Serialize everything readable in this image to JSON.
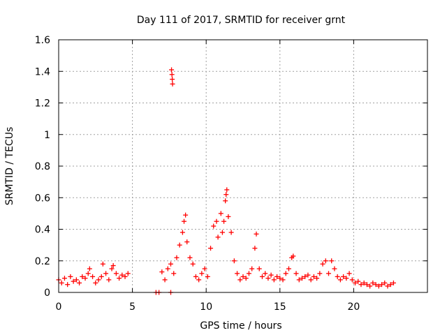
{
  "chart_data": {
    "type": "scatter",
    "title": "Day 111 of 2017, SRMTID for receiver grnt",
    "xlabel": "GPS time / hours",
    "ylabel": "SRMTID / TECUs",
    "xlim": [
      0,
      25
    ],
    "ylim": [
      0,
      1.6
    ],
    "xticks": [
      0,
      5,
      10,
      15,
      20
    ],
    "xtick_labels": [
      "0",
      "5",
      "10",
      "15",
      "20"
    ],
    "yticks": [
      0,
      0.2,
      0.4,
      0.6,
      0.8,
      1.0,
      1.2,
      1.4,
      1.6
    ],
    "ytick_labels": [
      "0",
      "0.2",
      "0.4",
      "0.6",
      "0.8",
      "1",
      "1.2",
      "1.4",
      "1.6"
    ],
    "grid": true,
    "marker": "+",
    "series_color": "#ff0000",
    "series": [
      {
        "name": "SRMTID",
        "points": [
          [
            0.0,
            0.08
          ],
          [
            0.2,
            0.06
          ],
          [
            0.4,
            0.09
          ],
          [
            0.6,
            0.05
          ],
          [
            0.8,
            0.1
          ],
          [
            1.0,
            0.07
          ],
          [
            1.2,
            0.08
          ],
          [
            1.4,
            0.06
          ],
          [
            1.6,
            0.1
          ],
          [
            1.8,
            0.09
          ],
          [
            2.0,
            0.12
          ],
          [
            2.1,
            0.15
          ],
          [
            2.3,
            0.1
          ],
          [
            2.5,
            0.06
          ],
          [
            2.7,
            0.08
          ],
          [
            2.9,
            0.1
          ],
          [
            3.0,
            0.18
          ],
          [
            3.2,
            0.12
          ],
          [
            3.4,
            0.08
          ],
          [
            3.6,
            0.15
          ],
          [
            3.7,
            0.17
          ],
          [
            3.9,
            0.12
          ],
          [
            4.1,
            0.09
          ],
          [
            4.3,
            0.11
          ],
          [
            4.5,
            0.1
          ],
          [
            4.7,
            0.12
          ],
          [
            6.6,
            0.0
          ],
          [
            6.8,
            0.0
          ],
          [
            7.0,
            0.13
          ],
          [
            7.2,
            0.08
          ],
          [
            7.4,
            0.15
          ],
          [
            7.6,
            0.18
          ],
          [
            7.6,
            0.0
          ],
          [
            7.65,
            1.41
          ],
          [
            7.68,
            1.38
          ],
          [
            7.7,
            1.35
          ],
          [
            7.72,
            1.32
          ],
          [
            7.8,
            0.12
          ],
          [
            8.0,
            0.22
          ],
          [
            8.2,
            0.3
          ],
          [
            8.4,
            0.38
          ],
          [
            8.5,
            0.45
          ],
          [
            8.6,
            0.49
          ],
          [
            8.7,
            0.32
          ],
          [
            8.9,
            0.22
          ],
          [
            9.1,
            0.18
          ],
          [
            9.3,
            0.1
          ],
          [
            9.5,
            0.08
          ],
          [
            9.7,
            0.12
          ],
          [
            9.9,
            0.15
          ],
          [
            10.1,
            0.1
          ],
          [
            10.3,
            0.28
          ],
          [
            10.5,
            0.42
          ],
          [
            10.7,
            0.45
          ],
          [
            10.8,
            0.35
          ],
          [
            11.0,
            0.5
          ],
          [
            11.1,
            0.38
          ],
          [
            11.2,
            0.45
          ],
          [
            11.3,
            0.58
          ],
          [
            11.35,
            0.62
          ],
          [
            11.4,
            0.65
          ],
          [
            11.5,
            0.48
          ],
          [
            11.7,
            0.38
          ],
          [
            11.9,
            0.2
          ],
          [
            12.1,
            0.12
          ],
          [
            12.3,
            0.08
          ],
          [
            12.5,
            0.1
          ],
          [
            12.7,
            0.09
          ],
          [
            12.9,
            0.12
          ],
          [
            13.1,
            0.15
          ],
          [
            13.3,
            0.28
          ],
          [
            13.4,
            0.37
          ],
          [
            13.6,
            0.15
          ],
          [
            13.8,
            0.1
          ],
          [
            14.0,
            0.12
          ],
          [
            14.2,
            0.09
          ],
          [
            14.4,
            0.11
          ],
          [
            14.6,
            0.08
          ],
          [
            14.8,
            0.1
          ],
          [
            15.0,
            0.09
          ],
          [
            15.2,
            0.08
          ],
          [
            15.4,
            0.12
          ],
          [
            15.6,
            0.15
          ],
          [
            15.8,
            0.22
          ],
          [
            15.9,
            0.23
          ],
          [
            16.1,
            0.12
          ],
          [
            16.3,
            0.08
          ],
          [
            16.5,
            0.09
          ],
          [
            16.7,
            0.1
          ],
          [
            16.9,
            0.11
          ],
          [
            17.1,
            0.08
          ],
          [
            17.3,
            0.1
          ],
          [
            17.5,
            0.09
          ],
          [
            17.7,
            0.12
          ],
          [
            17.9,
            0.18
          ],
          [
            18.1,
            0.2
          ],
          [
            18.3,
            0.12
          ],
          [
            18.5,
            0.2
          ],
          [
            18.7,
            0.15
          ],
          [
            18.9,
            0.1
          ],
          [
            19.1,
            0.08
          ],
          [
            19.3,
            0.1
          ],
          [
            19.5,
            0.09
          ],
          [
            19.7,
            0.12
          ],
          [
            19.9,
            0.08
          ],
          [
            20.1,
            0.06
          ],
          [
            20.3,
            0.07
          ],
          [
            20.5,
            0.05
          ],
          [
            20.7,
            0.06
          ],
          [
            20.9,
            0.05
          ],
          [
            21.1,
            0.04
          ],
          [
            21.3,
            0.06
          ],
          [
            21.5,
            0.05
          ],
          [
            21.7,
            0.04
          ],
          [
            21.9,
            0.05
          ],
          [
            22.1,
            0.06
          ],
          [
            22.3,
            0.04
          ],
          [
            22.5,
            0.05
          ],
          [
            22.7,
            0.06
          ]
        ]
      }
    ]
  }
}
